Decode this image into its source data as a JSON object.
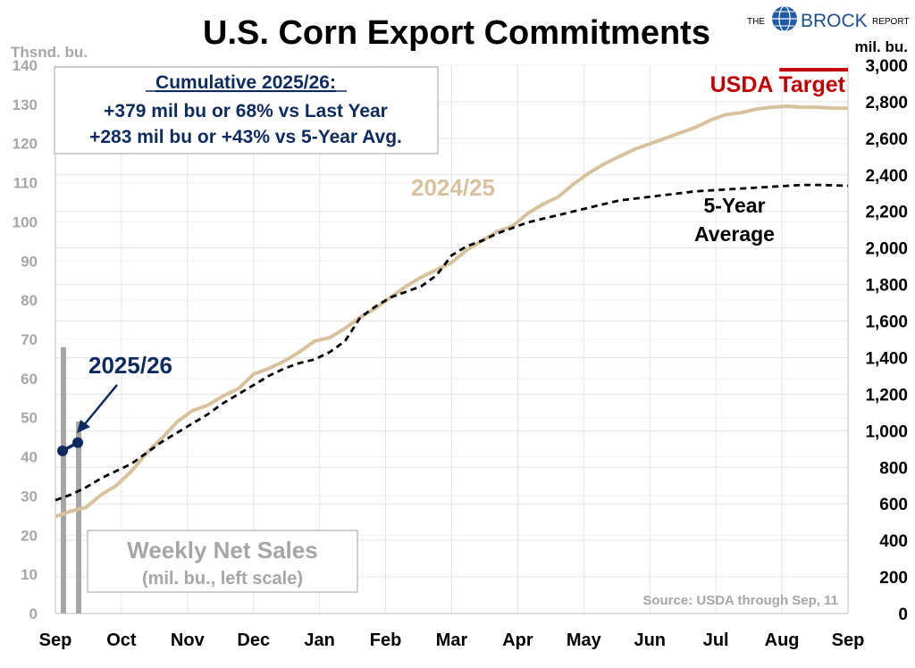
{
  "title": "U.S. Corn Export Commitments",
  "brand": {
    "prefix": "THE",
    "name": "BROCK",
    "suffix": "REPORT"
  },
  "left_axis_unit": "Thsnd. bu.",
  "right_axis_unit": "mil. bu.",
  "summary": {
    "heading": "Cumulative 2025/26:",
    "line1": "+379 mil bu or 68% vs Last Year",
    "line2": "+283 mil bu or +43% vs 5-Year Avg."
  },
  "weekly_box": {
    "title": "Weekly Net Sales",
    "subtitle": "(mil. bu., left scale)"
  },
  "source": "Source: USDA through Sep, 11",
  "colors": {
    "prior_year": "#d8c29d",
    "current_year": "#0d2b5e",
    "target": "#c00000",
    "five_year": "#000000",
    "bars": "#a6a6a6"
  },
  "chart_data": {
    "type": "line",
    "months": [
      "Sep",
      "Oct",
      "Nov",
      "Dec",
      "Jan",
      "Feb",
      "Mar",
      "Apr",
      "May",
      "Jun",
      "Jul",
      "Aug",
      "Sep"
    ],
    "x_range": [
      0,
      52
    ],
    "right_axis": {
      "ylim": [
        0,
        3000
      ],
      "ticks": [
        "0",
        "200",
        "400",
        "600",
        "800",
        "1,000",
        "1,200",
        "1,400",
        "1,600",
        "1,800",
        "2,000",
        "2,200",
        "2,400",
        "2,600",
        "2,800",
        "3,000"
      ]
    },
    "left_axis": {
      "ylim": [
        0,
        140
      ],
      "ticks": [
        "0",
        "10",
        "20",
        "30",
        "40",
        "50",
        "60",
        "70",
        "80",
        "90",
        "100",
        "110",
        "120",
        "130",
        "140"
      ]
    },
    "usda_target": {
      "label": "USDA Target",
      "value": 2975,
      "week_start": 47.5,
      "week_end": 52
    },
    "series": [
      {
        "name": "2024/25",
        "axis": "right",
        "x": [
          0,
          1,
          2,
          3,
          4,
          5,
          6,
          7,
          8,
          9,
          10,
          11,
          12,
          13,
          14,
          15,
          16,
          17,
          18,
          19,
          20,
          21,
          22,
          23,
          24,
          25,
          26,
          27,
          28,
          29,
          30,
          31,
          32,
          33,
          34,
          35,
          36,
          37,
          38,
          39,
          40,
          41,
          42,
          43,
          44,
          45,
          46,
          47,
          48,
          49,
          50,
          51,
          52
        ],
        "values": [
          530,
          560,
          580,
          650,
          700,
          780,
          880,
          960,
          1050,
          1110,
          1140,
          1190,
          1230,
          1310,
          1340,
          1380,
          1430,
          1490,
          1510,
          1560,
          1620,
          1670,
          1730,
          1790,
          1840,
          1880,
          1920,
          1990,
          2040,
          2090,
          2120,
          2190,
          2240,
          2280,
          2350,
          2410,
          2460,
          2500,
          2540,
          2570,
          2600,
          2630,
          2660,
          2700,
          2730,
          2740,
          2760,
          2770,
          2775,
          2770,
          2770,
          2765,
          2765
        ]
      },
      {
        "name": "5-Year Average",
        "axis": "right",
        "x": [
          0,
          1,
          2,
          3,
          4,
          5,
          6,
          7,
          8,
          9,
          10,
          11,
          12,
          13,
          14,
          15,
          16,
          17,
          18,
          19,
          20,
          21,
          22,
          23,
          24,
          25,
          26,
          27,
          28,
          29,
          30,
          31,
          32,
          33,
          34,
          35,
          36,
          37,
          38,
          39,
          40,
          41,
          42,
          43,
          44,
          45,
          46,
          47,
          48,
          49,
          50,
          51,
          52
        ],
        "values": [
          620,
          650,
          690,
          740,
          780,
          820,
          880,
          940,
          990,
          1040,
          1090,
          1150,
          1200,
          1250,
          1300,
          1340,
          1370,
          1390,
          1430,
          1490,
          1620,
          1680,
          1730,
          1760,
          1790,
          1850,
          1960,
          2010,
          2040,
          2080,
          2110,
          2140,
          2160,
          2180,
          2200,
          2220,
          2240,
          2260,
          2270,
          2280,
          2290,
          2300,
          2310,
          2315,
          2320,
          2325,
          2330,
          2335,
          2340,
          2345,
          2345,
          2343,
          2340
        ]
      },
      {
        "name": "2025/26",
        "axis": "right",
        "x": [
          0,
          1
        ],
        "values": [
          890,
          935
        ]
      }
    ],
    "weekly_net_sales": {
      "axis": "left",
      "x": [
        0,
        1
      ],
      "values": [
        68,
        49
      ]
    }
  }
}
